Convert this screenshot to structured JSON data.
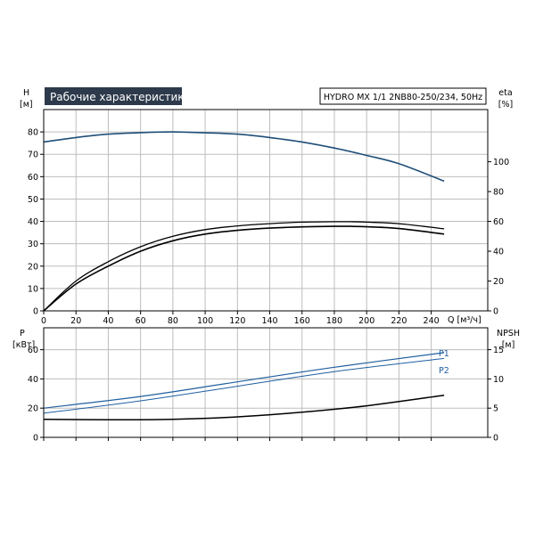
{
  "title": "Рабочие характеристики",
  "pump_label": "HYDRO MX 1/1 2NB80-250/234, 50Hz",
  "colors": {
    "title_bg": "#2d3a4b",
    "head_curve": "#1f4e79",
    "power_curve": "#1f5fa0",
    "black": "#000000",
    "grid": "#bdbdbd"
  },
  "chart_data": [
    {
      "type": "line",
      "panel": "head-efficiency",
      "xlabel": "Q [м³/ч]",
      "ylabel_left": "H\n[м]",
      "ylabel_right": "eta\n[%]",
      "xlim": [
        0,
        275
      ],
      "xticks": [
        0,
        20,
        40,
        60,
        80,
        100,
        120,
        140,
        160,
        180,
        200,
        220,
        240
      ],
      "ylim_left": [
        0,
        90
      ],
      "yticks_left": [
        0,
        10,
        20,
        30,
        40,
        50,
        60,
        70,
        80
      ],
      "ylim_right": [
        0,
        135
      ],
      "yticks_right": [
        0,
        20,
        40,
        60,
        80,
        100
      ],
      "grid": true,
      "series": [
        {
          "axis": "left",
          "x": [
            0,
            20,
            40,
            60,
            80,
            100,
            120,
            140,
            160,
            180,
            200,
            220,
            248
          ],
          "y": [
            75.5,
            77.5,
            79,
            79.7,
            80,
            79.6,
            79,
            77.5,
            75.5,
            72.8,
            69.5,
            65.8,
            58
          ]
        },
        {
          "axis": "right",
          "x": [
            0,
            20,
            40,
            60,
            80,
            100,
            120,
            140,
            160,
            180,
            190,
            200,
            220,
            248
          ],
          "y": [
            0,
            20,
            33,
            43,
            50,
            54.5,
            57,
            58.5,
            59.5,
            59.8,
            59.8,
            59.5,
            58.5,
            55
          ]
        },
        {
          "axis": "right",
          "x": [
            0,
            20,
            40,
            60,
            80,
            100,
            120,
            140,
            160,
            180,
            190,
            200,
            220,
            248
          ],
          "y": [
            0,
            18,
            30,
            40,
            47,
            51.5,
            54,
            55.5,
            56.3,
            56.7,
            56.7,
            56.4,
            55.2,
            51.5
          ]
        }
      ]
    },
    {
      "type": "line",
      "panel": "power-npsh",
      "ylabel_left": "P\n[кВт]",
      "ylabel_right": "NPSH\n[м]",
      "xlim": [
        0,
        275
      ],
      "ylim_left": [
        0,
        75
      ],
      "yticks_left": [
        0,
        20,
        40,
        60
      ],
      "ylim_right": [
        0,
        18.75
      ],
      "yticks_right": [
        0,
        5,
        10,
        15
      ],
      "grid": true,
      "series": [
        {
          "name": "P1",
          "axis": "left",
          "x": [
            0,
            60,
            120,
            180,
            248
          ],
          "y": [
            20,
            28,
            38,
            48,
            58
          ]
        },
        {
          "name": "P2",
          "axis": "left",
          "x": [
            0,
            60,
            120,
            180,
            248
          ],
          "y": [
            16.5,
            25,
            35,
            45,
            54
          ]
        },
        {
          "axis": "right",
          "x": [
            0,
            40,
            80,
            120,
            160,
            200,
            248
          ],
          "y": [
            3.1,
            3.0,
            3.1,
            3.5,
            4.3,
            5.4,
            7.2
          ]
        }
      ]
    }
  ]
}
